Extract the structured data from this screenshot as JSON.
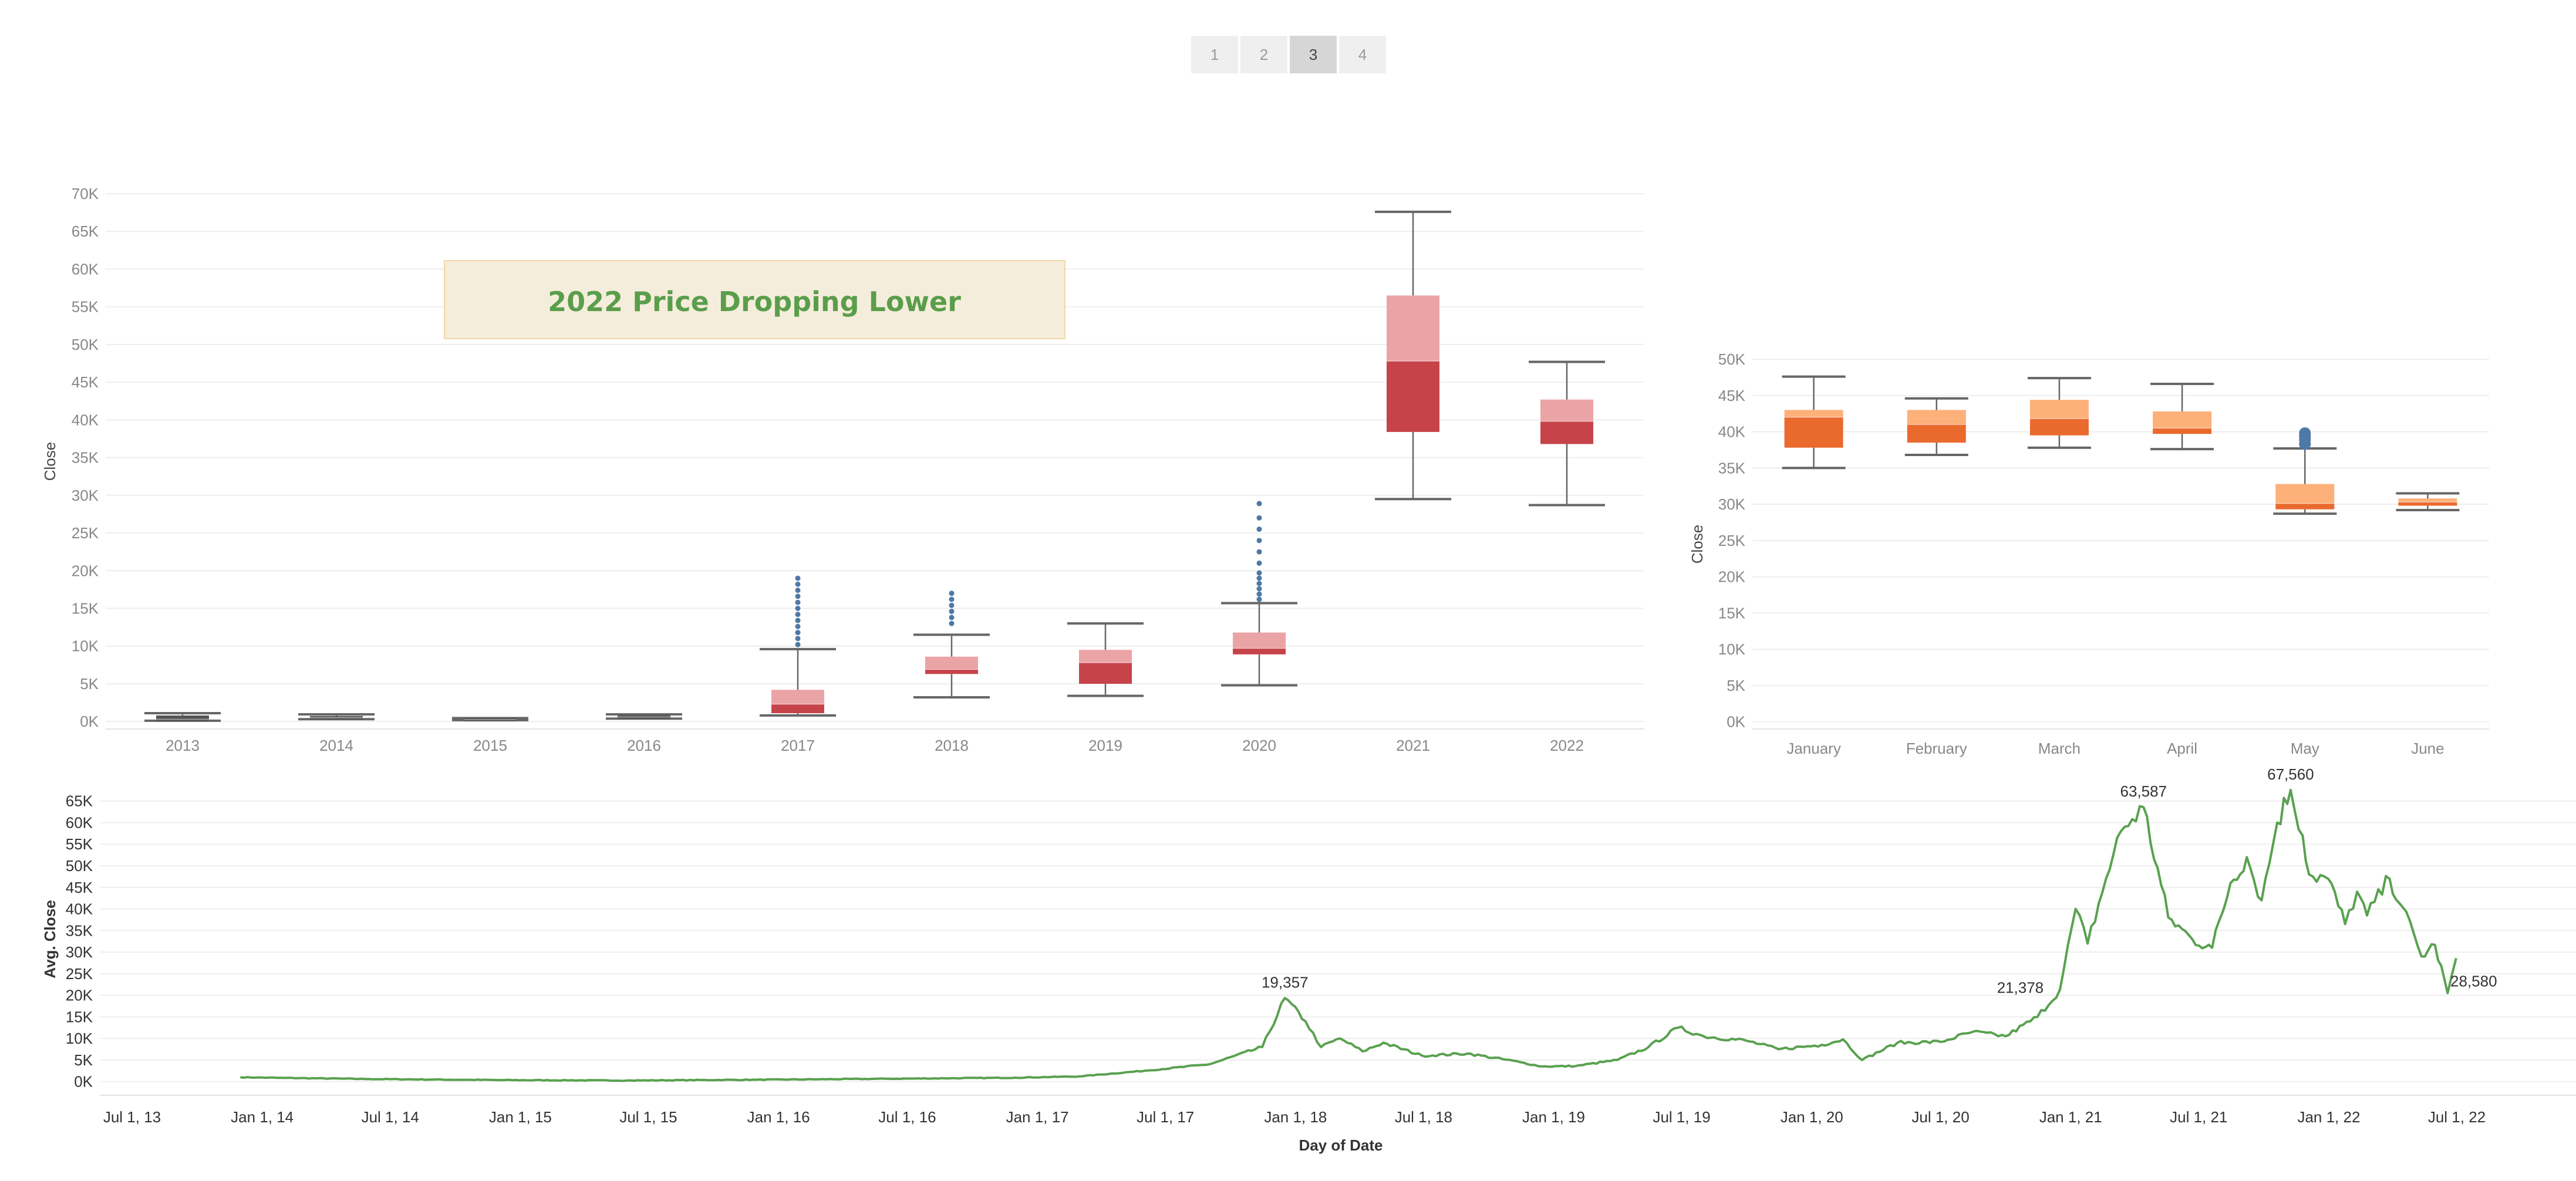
{
  "pager": {
    "pages": [
      "1",
      "2",
      "3",
      "4"
    ],
    "active": "3"
  },
  "colors": {
    "box_upper_red": "#eba4a6",
    "box_lower_red": "#c6434a",
    "box_upper_orange": "#fdb07a",
    "box_lower_orange": "#ea6a2e",
    "whisker": "#666666",
    "outlier": "#4e79a7",
    "line": "#59a14f",
    "grid": "#eeeeee",
    "annotation_fill": "#f5eddb",
    "annotation_border": "#f0d9a8",
    "annotation_text": "#5a9e4b"
  },
  "chart_data": [
    {
      "type": "box",
      "name": "yearly",
      "ylabel": "Close",
      "ylim": [
        -1000,
        70000
      ],
      "yticks": [
        0,
        5000,
        10000,
        15000,
        20000,
        25000,
        30000,
        35000,
        40000,
        45000,
        50000,
        55000,
        60000,
        65000,
        70000
      ],
      "ytick_labels": [
        "0K",
        "5K",
        "10K",
        "15K",
        "20K",
        "25K",
        "30K",
        "35K",
        "40K",
        "45K",
        "50K",
        "55K",
        "60K",
        "65K",
        "70K"
      ],
      "categories": [
        "2013",
        "2014",
        "2015",
        "2016",
        "2017",
        "2018",
        "2019",
        "2020",
        "2021",
        "2022"
      ],
      "boxes": [
        {
          "min": 100,
          "q1": 150,
          "median": 300,
          "q3": 800,
          "max": 1100
        },
        {
          "min": 300,
          "q1": 380,
          "median": 500,
          "q3": 700,
          "max": 950
        },
        {
          "min": 180,
          "q1": 230,
          "median": 250,
          "q3": 300,
          "max": 450
        },
        {
          "min": 380,
          "q1": 450,
          "median": 600,
          "q3": 700,
          "max": 950
        },
        {
          "min": 800,
          "q1": 1100,
          "median": 2300,
          "q3": 4200,
          "max": 9600
        },
        {
          "min": 3200,
          "q1": 6300,
          "median": 6900,
          "q3": 8600,
          "max": 11500
        },
        {
          "min": 3400,
          "q1": 5000,
          "median": 7800,
          "q3": 9500,
          "max": 13000
        },
        {
          "min": 4800,
          "q1": 8900,
          "median": 9700,
          "q3": 11800,
          "max": 15700
        },
        {
          "min": 29500,
          "q1": 38400,
          "median": 47800,
          "q3": 56500,
          "max": 67600
        },
        {
          "min": 28700,
          "q1": 36800,
          "median": 39800,
          "q3": 42700,
          "max": 47700
        }
      ],
      "outliers": [
        {
          "category": "2017",
          "values": [
            10200,
            11000,
            11800,
            12600,
            13400,
            14200,
            15000,
            15800,
            16600,
            17400,
            18200,
            19000
          ]
        },
        {
          "category": "2018",
          "values": [
            13000,
            13800,
            14600,
            15400,
            16200,
            17000
          ]
        },
        {
          "category": "2020",
          "values": [
            16200,
            16900,
            17600,
            18300,
            19000,
            19700,
            21000,
            22500,
            24000,
            25500,
            27000,
            28900
          ]
        }
      ],
      "annotation": "2022 Price Dropping Lower"
    },
    {
      "type": "box",
      "name": "monthly-2022",
      "ylabel": "Close",
      "ylim": [
        -1000,
        50000
      ],
      "yticks": [
        0,
        5000,
        10000,
        15000,
        20000,
        25000,
        30000,
        35000,
        40000,
        45000,
        50000
      ],
      "ytick_labels": [
        "0K",
        "5K",
        "10K",
        "15K",
        "20K",
        "25K",
        "30K",
        "35K",
        "40K",
        "45K",
        "50K"
      ],
      "categories": [
        "January",
        "February",
        "March",
        "April",
        "May",
        "June"
      ],
      "boxes": [
        {
          "min": 35000,
          "q1": 37800,
          "median": 42000,
          "q3": 43000,
          "max": 47600
        },
        {
          "min": 36800,
          "q1": 38500,
          "median": 41000,
          "q3": 43000,
          "max": 44600
        },
        {
          "min": 37800,
          "q1": 39500,
          "median": 41800,
          "q3": 44400,
          "max": 47400
        },
        {
          "min": 37600,
          "q1": 39700,
          "median": 40500,
          "q3": 42800,
          "max": 46600
        },
        {
          "min": 28700,
          "q1": 29300,
          "median": 30100,
          "q3": 32800,
          "max": 37700
        },
        {
          "min": 29200,
          "q1": 29800,
          "median": 30300,
          "q3": 30800,
          "max": 31500
        }
      ],
      "outliers": [
        {
          "category": "May",
          "values": [
            38300,
            38900,
            39400,
            39800
          ]
        }
      ]
    },
    {
      "type": "line",
      "name": "daily-average",
      "xlabel": "Day of Date",
      "ylabel": "Avg. Close",
      "ylim": [
        -1000,
        67000
      ],
      "yticks": [
        0,
        5000,
        10000,
        15000,
        20000,
        25000,
        30000,
        35000,
        40000,
        45000,
        50000,
        55000,
        60000,
        65000
      ],
      "ytick_labels": [
        "0K",
        "5K",
        "10K",
        "15K",
        "20K",
        "25K",
        "30K",
        "35K",
        "40K",
        "45K",
        "50K",
        "55K",
        "60K",
        "65K"
      ],
      "xticks": [
        "2013-07-01",
        "2014-01-01",
        "2014-07-01",
        "2015-01-01",
        "2015-07-01",
        "2016-01-01",
        "2016-07-01",
        "2017-01-01",
        "2017-07-01",
        "2018-01-01",
        "2018-07-01",
        "2019-01-01",
        "2019-07-01",
        "2020-01-01",
        "2020-07-01",
        "2021-01-01",
        "2021-07-01",
        "2022-01-01",
        "2022-07-01"
      ],
      "xtick_labels": [
        "Jul 1, 13",
        "Jan 1, 14",
        "Jul 1, 14",
        "Jan 1, 15",
        "Jul 1, 15",
        "Jan 1, 16",
        "Jul 1, 16",
        "Jan 1, 17",
        "Jul 1, 17",
        "Jan 1, 18",
        "Jul 1, 18",
        "Jan 1, 19",
        "Jul 1, 19",
        "Jan 1, 20",
        "Jul 1, 20",
        "Jan 1, 21",
        "Jul 1, 21",
        "Jan 1, 22",
        "Jul 1, 22"
      ],
      "x": [
        "2013-12-01",
        "2014-02-01",
        "2014-06-01",
        "2014-12-01",
        "2015-06-01",
        "2015-12-01",
        "2016-06-01",
        "2016-12-01",
        "2017-03-01",
        "2017-06-01",
        "2017-09-01",
        "2017-11-15",
        "2017-12-17",
        "2018-01-15",
        "2018-02-06",
        "2018-03-05",
        "2018-04-06",
        "2018-05-05",
        "2018-06-29",
        "2018-09-01",
        "2018-11-15",
        "2018-12-15",
        "2019-02-01",
        "2019-04-01",
        "2019-05-15",
        "2019-06-26",
        "2019-08-01",
        "2019-09-30",
        "2019-11-15",
        "2020-01-15",
        "2020-02-14",
        "2020-03-12",
        "2020-05-01",
        "2020-07-01",
        "2020-08-15",
        "2020-10-01",
        "2020-11-15",
        "2020-12-17",
        "2021-01-08",
        "2021-01-25",
        "2021-02-20",
        "2021-03-13",
        "2021-04-14",
        "2021-05-19",
        "2021-06-22",
        "2021-07-20",
        "2021-08-15",
        "2021-09-07",
        "2021-09-28",
        "2021-10-20",
        "2021-11-08",
        "2021-11-25",
        "2021-12-04",
        "2021-12-31",
        "2022-01-24",
        "2022-02-10",
        "2022-02-24",
        "2022-03-28",
        "2022-04-15",
        "2022-05-12",
        "2022-05-31",
        "2022-06-18",
        "2022-06-30"
      ],
      "y": [
        1000,
        850,
        600,
        350,
        250,
        430,
        650,
        900,
        1200,
        2500,
        4000,
        8000,
        19357,
        14000,
        8000,
        10000,
        7000,
        9000,
        6000,
        6500,
        4500,
        3500,
        3600,
        5000,
        8000,
        12500,
        10500,
        9500,
        7500,
        8500,
        9800,
        5000,
        9000,
        9200,
        11500,
        10500,
        15000,
        21378,
        40000,
        32000,
        47000,
        58000,
        63587,
        38000,
        33000,
        31000,
        46000,
        52000,
        42000,
        60000,
        67560,
        57000,
        48000,
        47000,
        36500,
        44000,
        38500,
        47000,
        40500,
        29000,
        31700,
        20500,
        28580
      ],
      "peak_labels": [
        {
          "x": "2017-12-17",
          "y": 19357,
          "text": "19,357"
        },
        {
          "x": "2020-12-17",
          "y": 21378,
          "text": "21,378"
        },
        {
          "x": "2021-04-14",
          "y": 63587,
          "text": "63,587"
        },
        {
          "x": "2021-11-08",
          "y": 67560,
          "text": "67,560"
        },
        {
          "x": "2022-06-30",
          "y": 28580,
          "text": "28,580"
        }
      ]
    }
  ]
}
